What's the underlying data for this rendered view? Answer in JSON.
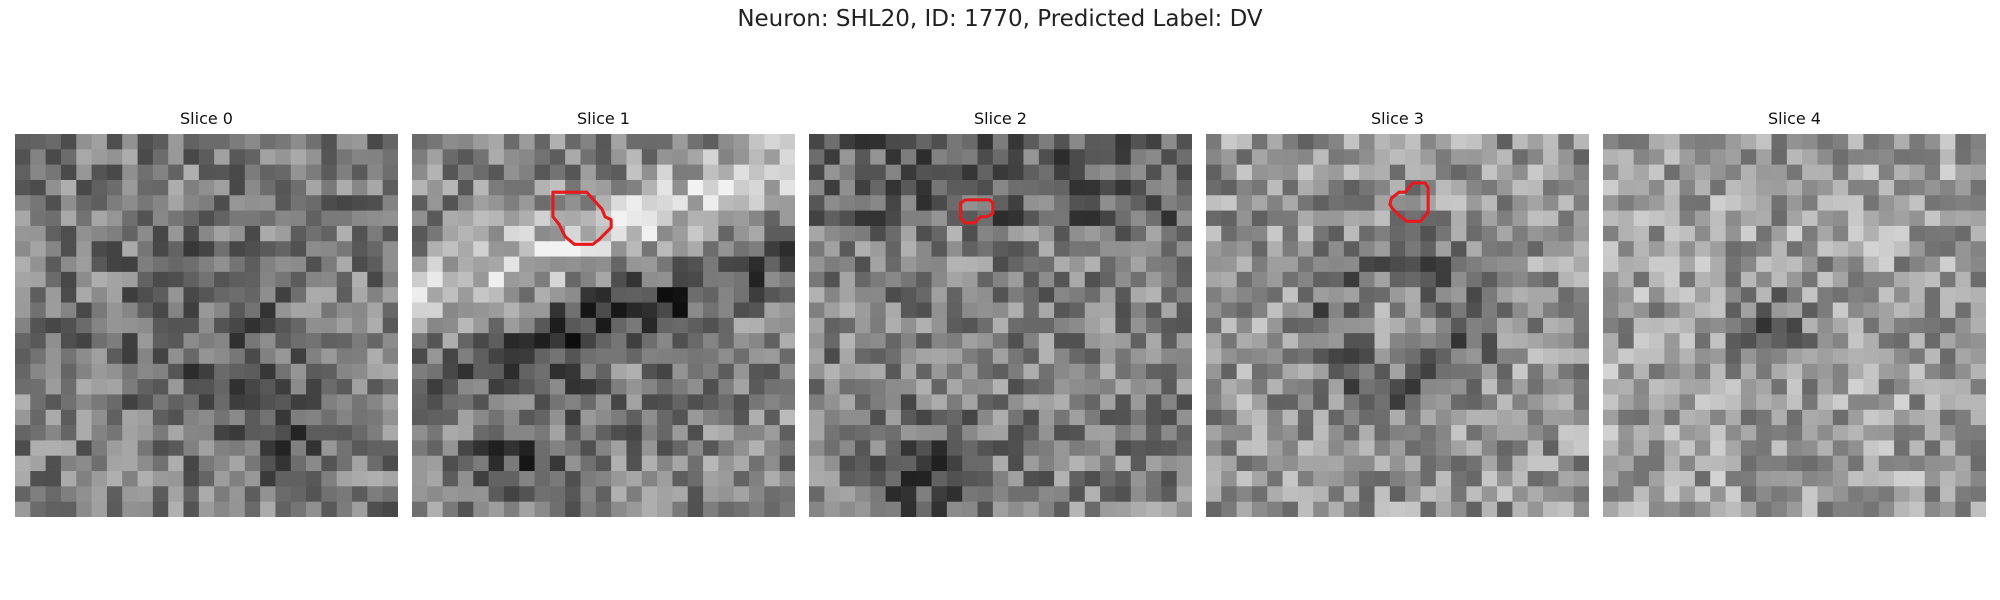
{
  "figure": {
    "title": "Neuron: SHL20, ID: 1770, Predicted Label: DV",
    "overlay_color": "#e41a1c",
    "panels": [
      {
        "label": "Slice 0",
        "seed": 11,
        "base": 0.48,
        "texture": "mottled",
        "has_roi": false
      },
      {
        "label": "Slice 1",
        "seed": 23,
        "base": 0.52,
        "texture": "bands",
        "has_roi": true,
        "roi": [
          [
            9.2,
            3.8
          ],
          [
            11.4,
            3.8
          ],
          [
            12.4,
            4.9
          ],
          [
            12.6,
            5.4
          ],
          [
            13.0,
            5.6
          ],
          [
            13.0,
            6.1
          ],
          [
            12.2,
            6.9
          ],
          [
            11.8,
            7.2
          ],
          [
            10.6,
            7.2
          ],
          [
            10.0,
            6.7
          ],
          [
            9.6,
            5.9
          ],
          [
            9.2,
            5.4
          ]
        ]
      },
      {
        "label": "Slice 2",
        "seed": 37,
        "base": 0.5,
        "texture": "dark-top",
        "has_roi": true,
        "roi": [
          [
            10.2,
            4.3
          ],
          [
            11.8,
            4.3
          ],
          [
            12.0,
            4.5
          ],
          [
            12.0,
            5.2
          ],
          [
            11.6,
            5.4
          ],
          [
            11.2,
            5.4
          ],
          [
            10.8,
            5.8
          ],
          [
            10.2,
            5.8
          ],
          [
            9.9,
            5.5
          ],
          [
            9.9,
            4.5
          ]
        ]
      },
      {
        "label": "Slice 3",
        "seed": 41,
        "base": 0.58,
        "texture": "ring",
        "has_roi": true,
        "roi": [
          [
            13.5,
            3.2
          ],
          [
            14.3,
            3.2
          ],
          [
            14.5,
            3.5
          ],
          [
            14.5,
            5.1
          ],
          [
            14.0,
            5.7
          ],
          [
            13.1,
            5.7
          ],
          [
            12.6,
            5.3
          ],
          [
            12.2,
            4.9
          ],
          [
            12.0,
            4.6
          ],
          [
            12.1,
            4.2
          ],
          [
            12.6,
            3.8
          ],
          [
            13.0,
            3.8
          ]
        ]
      },
      {
        "label": "Slice 4",
        "seed": 53,
        "base": 0.62,
        "texture": "light",
        "has_roi": false
      }
    ]
  }
}
